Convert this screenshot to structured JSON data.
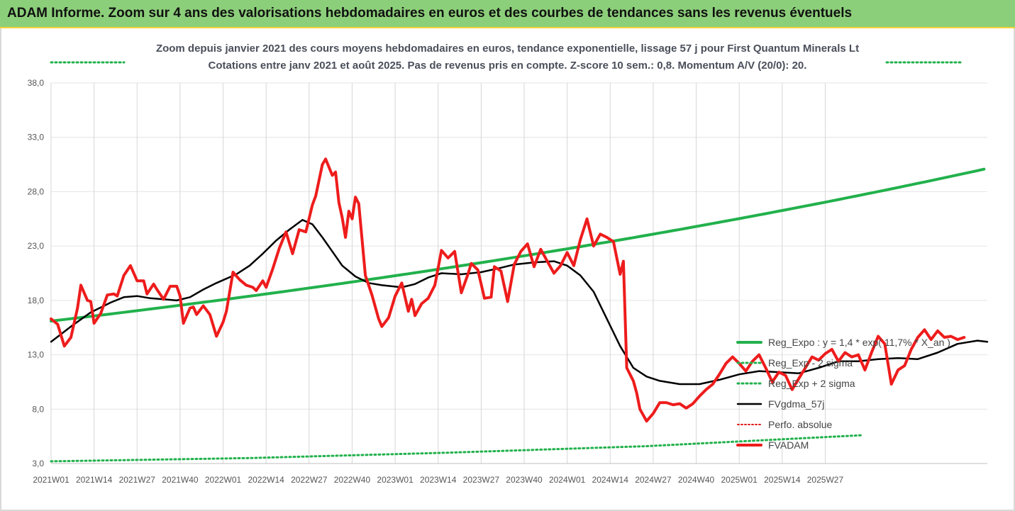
{
  "header": {
    "title": "ADAM Informe. Zoom sur 4 ans des valorisations hebdomadaires en euros et des courbes de tendances sans les revenus éventuels"
  },
  "chart_data": {
    "type": "line",
    "title": "Zoom depuis janvier 2021 des cours moyens hebdomadaires en euros, tendance exponentielle, lissage 57 j pour First Quantum Minerals Lt",
    "subtitle": "Cotations entre janv 2021 et août 2025.  Pas de revenus pris en compte. Z-score 10 sem.: 0,8. Momentum A/V (20/0): 20.",
    "ylim": [
      3.0,
      38.0
    ],
    "y_ticks": [
      "3,0",
      "8,0",
      "13,0",
      "18,0",
      "23,0",
      "28,0",
      "33,0",
      "38,0"
    ],
    "x_ticks": [
      "2021W01",
      "2021W14",
      "2021W27",
      "2021W40",
      "2022W01",
      "2022W14",
      "2022W27",
      "2022W40",
      "2023W01",
      "2023W14",
      "2023W27",
      "2023W40",
      "2024W01",
      "2024W14",
      "2024W27",
      "2024W40",
      "2025W01",
      "2025W14",
      "2025W27"
    ],
    "grid": true,
    "legend_position": "bottom-right",
    "colors": {
      "reg_expo": "#22b14c",
      "sigma": "#22b14c",
      "gdma": "#000000",
      "perfo": "#e01b1b",
      "fvadam": "#ee1c1c"
    },
    "series": [
      {
        "name": "Reg_Expo : y = 1,4 * exp( 11,7% *  X_an )",
        "style": "solid-green",
        "values": [
          [
            0,
            16.1
          ],
          [
            245,
            27.7
          ]
        ]
      },
      {
        "name": "Reg_Exp - 2 sigma",
        "style": "dotted-green",
        "values": [
          [
            0,
            3.2
          ],
          [
            60,
            3.5
          ],
          [
            120,
            4.0
          ],
          [
            180,
            4.6
          ],
          [
            245,
            5.6
          ]
        ]
      },
      {
        "name": "Reg_Exp + 2 sigma",
        "style": "dotted-green",
        "values": [
          [
            0,
            40.0
          ],
          [
            245,
            40.0
          ]
        ]
      },
      {
        "name": "FVgdma_57j",
        "style": "solid-black",
        "values": [
          [
            0,
            14.2
          ],
          [
            6,
            15.6
          ],
          [
            12,
            16.9
          ],
          [
            18,
            17.8
          ],
          [
            22,
            18.3
          ],
          [
            26,
            18.4
          ],
          [
            30,
            18.2
          ],
          [
            34,
            18.1
          ],
          [
            38,
            18.0
          ],
          [
            42,
            18.3
          ],
          [
            46,
            19.0
          ],
          [
            50,
            19.6
          ],
          [
            56,
            20.4
          ],
          [
            60,
            21.2
          ],
          [
            64,
            22.3
          ],
          [
            68,
            23.5
          ],
          [
            72,
            24.5
          ],
          [
            76,
            25.4
          ],
          [
            79,
            25.0
          ],
          [
            82,
            23.8
          ],
          [
            85,
            22.5
          ],
          [
            88,
            21.2
          ],
          [
            92,
            20.2
          ],
          [
            96,
            19.6
          ],
          [
            100,
            19.4
          ],
          [
            106,
            19.2
          ],
          [
            110,
            19.5
          ],
          [
            114,
            20.1
          ],
          [
            118,
            20.5
          ],
          [
            124,
            20.4
          ],
          [
            130,
            20.6
          ],
          [
            136,
            21.0
          ],
          [
            140,
            21.3
          ],
          [
            146,
            21.5
          ],
          [
            152,
            21.6
          ],
          [
            156,
            21.2
          ],
          [
            160,
            20.3
          ],
          [
            164,
            18.8
          ],
          [
            168,
            16.3
          ],
          [
            172,
            13.8
          ],
          [
            176,
            11.8
          ],
          [
            180,
            11.0
          ],
          [
            184,
            10.6
          ],
          [
            190,
            10.3
          ],
          [
            196,
            10.3
          ],
          [
            202,
            10.7
          ],
          [
            208,
            11.2
          ],
          [
            214,
            11.5
          ],
          [
            220,
            11.4
          ],
          [
            226,
            11.3
          ],
          [
            232,
            11.8
          ],
          [
            238,
            12.4
          ],
          [
            244,
            12.4
          ],
          [
            250,
            12.6
          ],
          [
            256,
            12.7
          ],
          [
            262,
            12.6
          ],
          [
            268,
            13.2
          ],
          [
            274,
            14.0
          ],
          [
            280,
            14.3
          ],
          [
            283,
            14.2
          ]
        ]
      },
      {
        "name": "Perfo. absolue",
        "style": "dotted-red",
        "values": []
      },
      {
        "name": "FVADAM",
        "style": "thick-red",
        "values": [
          [
            0,
            16.3
          ],
          [
            2,
            15.8
          ],
          [
            4,
            13.8
          ],
          [
            6,
            14.6
          ],
          [
            8,
            17.3
          ],
          [
            9,
            19.4
          ],
          [
            11,
            18.0
          ],
          [
            12,
            17.9
          ],
          [
            13,
            15.9
          ],
          [
            15,
            16.8
          ],
          [
            17,
            18.5
          ],
          [
            19,
            18.6
          ],
          [
            20,
            18.4
          ],
          [
            22,
            20.3
          ],
          [
            24,
            21.2
          ],
          [
            26,
            19.8
          ],
          [
            28,
            19.8
          ],
          [
            29,
            18.6
          ],
          [
            31,
            19.5
          ],
          [
            32,
            19.0
          ],
          [
            34,
            18.1
          ],
          [
            36,
            19.3
          ],
          [
            38,
            19.3
          ],
          [
            39,
            18.4
          ],
          [
            40,
            15.9
          ],
          [
            42,
            17.3
          ],
          [
            43,
            17.4
          ],
          [
            44,
            16.7
          ],
          [
            46,
            17.5
          ],
          [
            48,
            16.7
          ],
          [
            50,
            14.7
          ],
          [
            52,
            16.0
          ],
          [
            53,
            17.0
          ],
          [
            55,
            20.6
          ],
          [
            57,
            19.9
          ],
          [
            59,
            19.4
          ],
          [
            61,
            19.2
          ],
          [
            62,
            18.9
          ],
          [
            64,
            19.8
          ],
          [
            65,
            19.2
          ],
          [
            67,
            20.9
          ],
          [
            69,
            22.8
          ],
          [
            71,
            24.3
          ],
          [
            73,
            22.3
          ],
          [
            75,
            24.5
          ],
          [
            77,
            24.3
          ],
          [
            79,
            26.8
          ],
          [
            80,
            27.6
          ],
          [
            82,
            30.5
          ],
          [
            83,
            31.0
          ],
          [
            85,
            29.5
          ],
          [
            86,
            29.8
          ],
          [
            87,
            27.0
          ],
          [
            88,
            25.6
          ],
          [
            89,
            23.8
          ],
          [
            90,
            26.2
          ],
          [
            91,
            25.5
          ],
          [
            92,
            27.5
          ],
          [
            93,
            26.9
          ],
          [
            95,
            20.3
          ],
          [
            97,
            18.5
          ],
          [
            99,
            16.3
          ],
          [
            100,
            15.6
          ],
          [
            102,
            16.4
          ],
          [
            104,
            18.4
          ],
          [
            106,
            19.6
          ],
          [
            108,
            17.0
          ],
          [
            109,
            18.1
          ],
          [
            110,
            16.6
          ],
          [
            112,
            17.7
          ],
          [
            114,
            18.2
          ],
          [
            116,
            19.4
          ],
          [
            118,
            22.6
          ],
          [
            120,
            21.9
          ],
          [
            122,
            22.5
          ],
          [
            124,
            18.7
          ],
          [
            126,
            20.4
          ],
          [
            127,
            21.4
          ],
          [
            129,
            20.8
          ],
          [
            131,
            18.2
          ],
          [
            133,
            18.3
          ],
          [
            134,
            21.1
          ],
          [
            136,
            20.7
          ],
          [
            138,
            17.9
          ],
          [
            140,
            21.3
          ],
          [
            142,
            22.5
          ],
          [
            144,
            23.2
          ],
          [
            146,
            21.1
          ],
          [
            148,
            22.7
          ],
          [
            150,
            21.6
          ],
          [
            152,
            20.5
          ],
          [
            154,
            21.2
          ],
          [
            156,
            22.4
          ],
          [
            158,
            21.2
          ],
          [
            160,
            23.6
          ],
          [
            162,
            25.5
          ],
          [
            164,
            23.0
          ],
          [
            166,
            24.1
          ],
          [
            168,
            23.8
          ],
          [
            170,
            23.4
          ],
          [
            172,
            20.4
          ],
          [
            173,
            21.6
          ],
          [
            174,
            11.8
          ],
          [
            176,
            10.6
          ],
          [
            177,
            9.5
          ],
          [
            178,
            8.0
          ],
          [
            180,
            6.9
          ],
          [
            182,
            7.6
          ],
          [
            184,
            8.6
          ],
          [
            186,
            8.6
          ],
          [
            188,
            8.4
          ],
          [
            190,
            8.5
          ],
          [
            192,
            8.1
          ],
          [
            194,
            8.5
          ],
          [
            196,
            9.2
          ],
          [
            198,
            9.8
          ],
          [
            200,
            10.3
          ],
          [
            202,
            11.2
          ],
          [
            204,
            12.2
          ],
          [
            206,
            12.8
          ],
          [
            208,
            12.2
          ],
          [
            210,
            11.5
          ],
          [
            212,
            12.4
          ],
          [
            214,
            13.0
          ],
          [
            216,
            11.8
          ],
          [
            218,
            10.5
          ],
          [
            220,
            11.4
          ],
          [
            222,
            11.1
          ],
          [
            224,
            9.8
          ],
          [
            226,
            10.8
          ],
          [
            228,
            11.8
          ],
          [
            230,
            12.8
          ],
          [
            232,
            12.5
          ],
          [
            234,
            13.1
          ],
          [
            236,
            13.5
          ],
          [
            238,
            12.4
          ],
          [
            240,
            13.2
          ],
          [
            242,
            12.8
          ],
          [
            244,
            13.0
          ],
          [
            246,
            11.6
          ],
          [
            248,
            13.2
          ],
          [
            250,
            14.7
          ],
          [
            252,
            14.0
          ],
          [
            254,
            10.3
          ],
          [
            256,
            11.6
          ],
          [
            258,
            12.0
          ],
          [
            260,
            13.5
          ],
          [
            262,
            14.6
          ],
          [
            264,
            15.3
          ],
          [
            266,
            14.4
          ],
          [
            268,
            15.2
          ],
          [
            270,
            14.6
          ],
          [
            272,
            14.7
          ],
          [
            274,
            14.4
          ],
          [
            276,
            14.6
          ]
        ]
      }
    ]
  }
}
